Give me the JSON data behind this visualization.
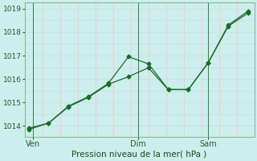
{
  "line1_y": [
    1013.9,
    1014.12,
    1014.85,
    1015.25,
    1015.82,
    1016.95,
    1016.65,
    1015.55,
    1015.55,
    1016.7,
    1018.3,
    1018.9
  ],
  "line2_y": [
    1013.85,
    1014.12,
    1014.82,
    1015.22,
    1015.78,
    1016.1,
    1016.48,
    1015.55,
    1015.55,
    1016.7,
    1018.25,
    1018.82
  ],
  "line_color": "#1a6b2a",
  "bg_color": "#cceeed",
  "grid_h_color": "#c8e0df",
  "grid_v_color": "#f0c8c8",
  "ylabel_ticks": [
    1014,
    1015,
    1016,
    1017,
    1018,
    1019
  ],
  "ylim": [
    1013.55,
    1019.25
  ],
  "xlim": [
    -0.2,
    11.3
  ],
  "xlabel": "Pression niveau de la mer( hPa )",
  "xtick_positions": [
    0.2,
    5.5,
    9.0
  ],
  "xtick_labels": [
    "Ven",
    "Dim",
    "Sam"
  ],
  "vline_positions": [
    0.2,
    5.5,
    9.0
  ]
}
